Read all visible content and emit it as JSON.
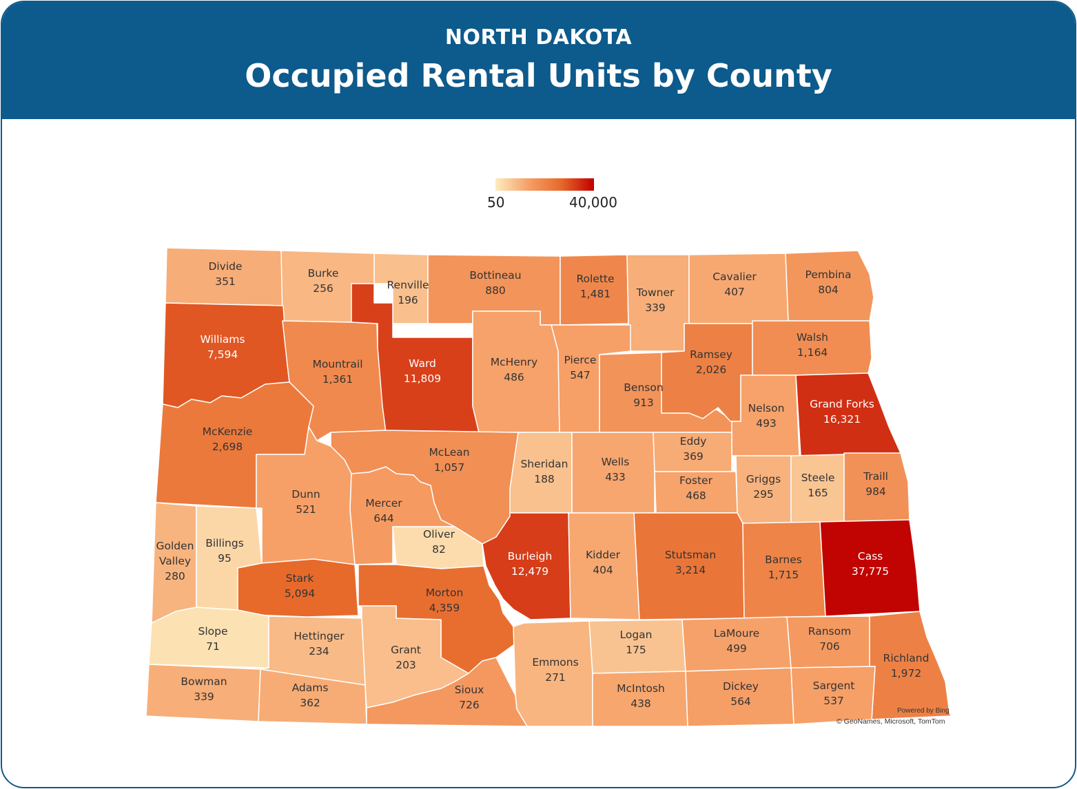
{
  "header": {
    "supertitle": "NORTH DAKOTA",
    "title": "Occupied Rental Units by County"
  },
  "legend": {
    "min_label": "50",
    "max_label": "40,000",
    "min": 50,
    "max": 40000,
    "colors": [
      "#fdecc0",
      "#f6a068",
      "#e7692a",
      "#c00000"
    ]
  },
  "attribution": {
    "powered": "Powered by Bing",
    "copyright": "© GeoNames, Microsoft, TomTom"
  },
  "counties": [
    {
      "id": "divide",
      "name": "Divide",
      "value": 351,
      "label": "351"
    },
    {
      "id": "burke",
      "name": "Burke",
      "value": 256,
      "label": "256"
    },
    {
      "id": "renville",
      "name": "Renville",
      "value": 196,
      "label": "196"
    },
    {
      "id": "bottineau",
      "name": "Bottineau",
      "value": 880,
      "label": "880"
    },
    {
      "id": "rolette",
      "name": "Rolette",
      "value": 1481,
      "label": "1,481"
    },
    {
      "id": "towner",
      "name": "Towner",
      "value": 339,
      "label": "339"
    },
    {
      "id": "cavalier",
      "name": "Cavalier",
      "value": 407,
      "label": "407"
    },
    {
      "id": "pembina",
      "name": "Pembina",
      "value": 804,
      "label": "804"
    },
    {
      "id": "williams",
      "name": "Williams",
      "value": 7594,
      "label": "7,594"
    },
    {
      "id": "mountrail",
      "name": "Mountrail",
      "value": 1361,
      "label": "1,361"
    },
    {
      "id": "ward",
      "name": "Ward",
      "value": 11809,
      "label": "11,809"
    },
    {
      "id": "mchenry",
      "name": "McHenry",
      "value": 486,
      "label": "486"
    },
    {
      "id": "pierce",
      "name": "Pierce",
      "value": 547,
      "label": "547"
    },
    {
      "id": "benson",
      "name": "Benson",
      "value": 913,
      "label": "913"
    },
    {
      "id": "ramsey",
      "name": "Ramsey",
      "value": 2026,
      "label": "2,026"
    },
    {
      "id": "walsh",
      "name": "Walsh",
      "value": 1164,
      "label": "1,164"
    },
    {
      "id": "nelson",
      "name": "Nelson",
      "value": 493,
      "label": "493"
    },
    {
      "id": "grandforks",
      "name": "Grand Forks",
      "value": 16321,
      "label": "16,321"
    },
    {
      "id": "mckenzie",
      "name": "McKenzie",
      "value": 2698,
      "label": "2,698"
    },
    {
      "id": "mclean",
      "name": "McLean",
      "value": 1057,
      "label": "1,057"
    },
    {
      "id": "sheridan",
      "name": "Sheridan",
      "value": 188,
      "label": "188"
    },
    {
      "id": "wells",
      "name": "Wells",
      "value": 433,
      "label": "433"
    },
    {
      "id": "eddy",
      "name": "Eddy",
      "value": 369,
      "label": "369"
    },
    {
      "id": "foster",
      "name": "Foster",
      "value": 468,
      "label": "468"
    },
    {
      "id": "griggs",
      "name": "Griggs",
      "value": 295,
      "label": "295"
    },
    {
      "id": "steele",
      "name": "Steele",
      "value": 165,
      "label": "165"
    },
    {
      "id": "traill",
      "name": "Traill",
      "value": 984,
      "label": "984"
    },
    {
      "id": "dunn",
      "name": "Dunn",
      "value": 521,
      "label": "521"
    },
    {
      "id": "mercer",
      "name": "Mercer",
      "value": 644,
      "label": "644"
    },
    {
      "id": "oliver",
      "name": "Oliver",
      "value": 82,
      "label": "82"
    },
    {
      "id": "goldenvalley",
      "name": "Golden Valley",
      "value": 280,
      "label": "280"
    },
    {
      "id": "billings",
      "name": "Billings",
      "value": 95,
      "label": "95"
    },
    {
      "id": "stark",
      "name": "Stark",
      "value": 5094,
      "label": "5,094"
    },
    {
      "id": "morton",
      "name": "Morton",
      "value": 4359,
      "label": "4,359"
    },
    {
      "id": "burleigh",
      "name": "Burleigh",
      "value": 12479,
      "label": "12,479"
    },
    {
      "id": "kidder",
      "name": "Kidder",
      "value": 404,
      "label": "404"
    },
    {
      "id": "stutsman",
      "name": "Stutsman",
      "value": 3214,
      "label": "3,214"
    },
    {
      "id": "barnes",
      "name": "Barnes",
      "value": 1715,
      "label": "1,715"
    },
    {
      "id": "cass",
      "name": "Cass",
      "value": 37775,
      "label": "37,775"
    },
    {
      "id": "slope",
      "name": "Slope",
      "value": 71,
      "label": "71"
    },
    {
      "id": "hettinger",
      "name": "Hettinger",
      "value": 234,
      "label": "234"
    },
    {
      "id": "grant",
      "name": "Grant",
      "value": 203,
      "label": "203"
    },
    {
      "id": "emmons",
      "name": "Emmons",
      "value": 271,
      "label": "271"
    },
    {
      "id": "logan",
      "name": "Logan",
      "value": 175,
      "label": "175"
    },
    {
      "id": "lamoure",
      "name": "LaMoure",
      "value": 499,
      "label": "499"
    },
    {
      "id": "ransom",
      "name": "Ransom",
      "value": 706,
      "label": "706"
    },
    {
      "id": "richland",
      "name": "Richland",
      "value": 1972,
      "label": "1,972"
    },
    {
      "id": "bowman",
      "name": "Bowman",
      "value": 339,
      "label": "339"
    },
    {
      "id": "adams",
      "name": "Adams",
      "value": 362,
      "label": "362"
    },
    {
      "id": "sioux",
      "name": "Sioux",
      "value": 726,
      "label": "726"
    },
    {
      "id": "mcintosh",
      "name": "McIntosh",
      "value": 438,
      "label": "438"
    },
    {
      "id": "dickey",
      "name": "Dickey",
      "value": 564,
      "label": "564"
    },
    {
      "id": "sargent",
      "name": "Sargent",
      "value": 537,
      "label": "537"
    }
  ]
}
